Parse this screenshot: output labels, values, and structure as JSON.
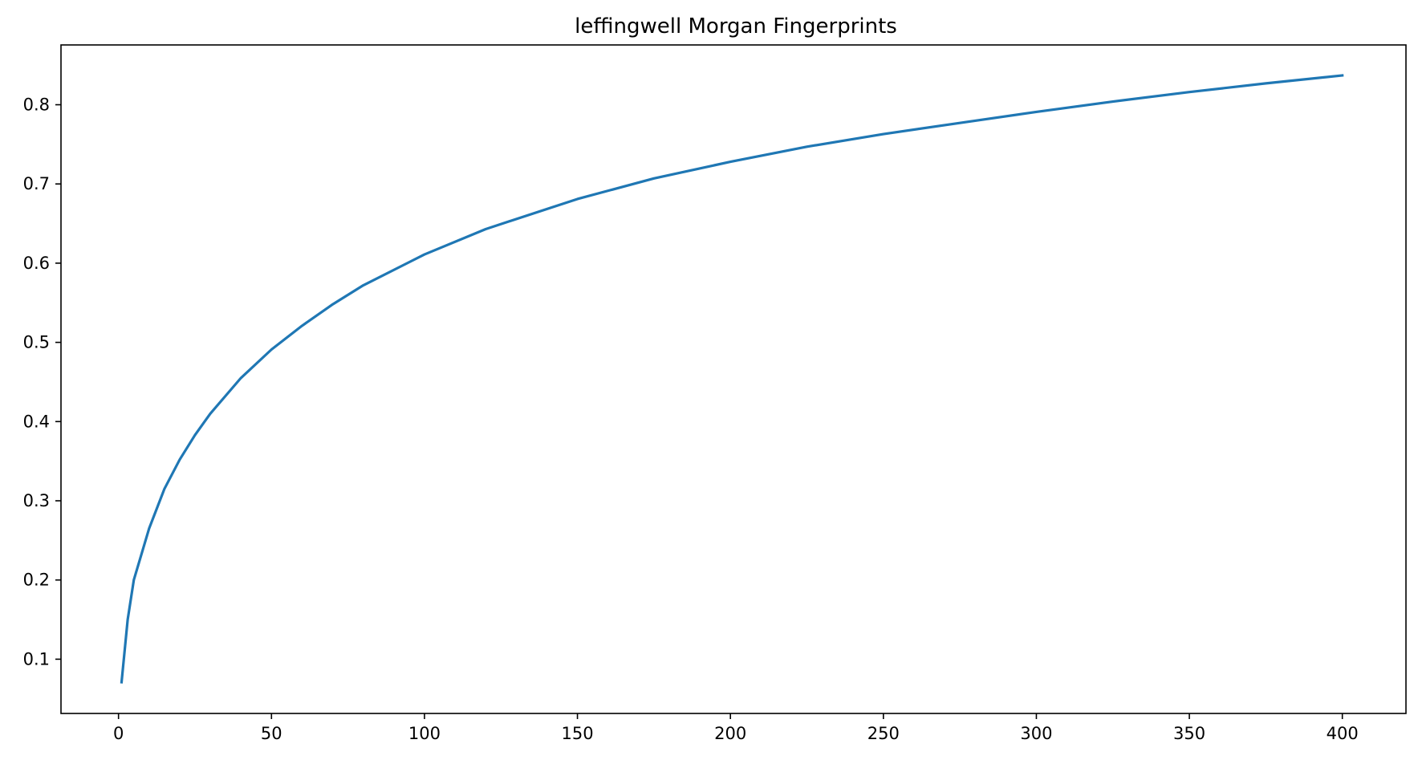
{
  "chart_data": {
    "type": "line",
    "title": "leffingwell Morgan Fingerprints",
    "xlabel": "",
    "ylabel": "",
    "xlim": [
      -18.8,
      420.8
    ],
    "ylim": [
      0.0315,
      0.8755
    ],
    "x_ticks": [
      0,
      50,
      100,
      150,
      200,
      250,
      300,
      350,
      400
    ],
    "y_ticks": [
      0.1,
      0.2,
      0.3,
      0.4,
      0.5,
      0.6,
      0.7,
      0.8
    ],
    "x_tick_labels": [
      "0",
      "50",
      "100",
      "150",
      "200",
      "250",
      "300",
      "350",
      "400"
    ],
    "y_tick_labels": [
      "0.1",
      "0.2",
      "0.3",
      "0.4",
      "0.5",
      "0.6",
      "0.7",
      "0.8"
    ],
    "grid": false,
    "series": [
      {
        "color": "#1f77b4",
        "x": [
          1,
          3,
          5,
          10,
          15,
          20,
          25,
          30,
          40,
          50,
          60,
          70,
          80,
          100,
          120,
          150,
          175,
          200,
          225,
          250,
          275,
          300,
          325,
          350,
          375,
          400
        ],
        "y": [
          0.071,
          0.15,
          0.2,
          0.265,
          0.315,
          0.352,
          0.383,
          0.41,
          0.455,
          0.491,
          0.521,
          0.548,
          0.572,
          0.611,
          0.643,
          0.681,
          0.707,
          0.728,
          0.747,
          0.763,
          0.777,
          0.791,
          0.804,
          0.816,
          0.827,
          0.837
        ]
      }
    ]
  }
}
